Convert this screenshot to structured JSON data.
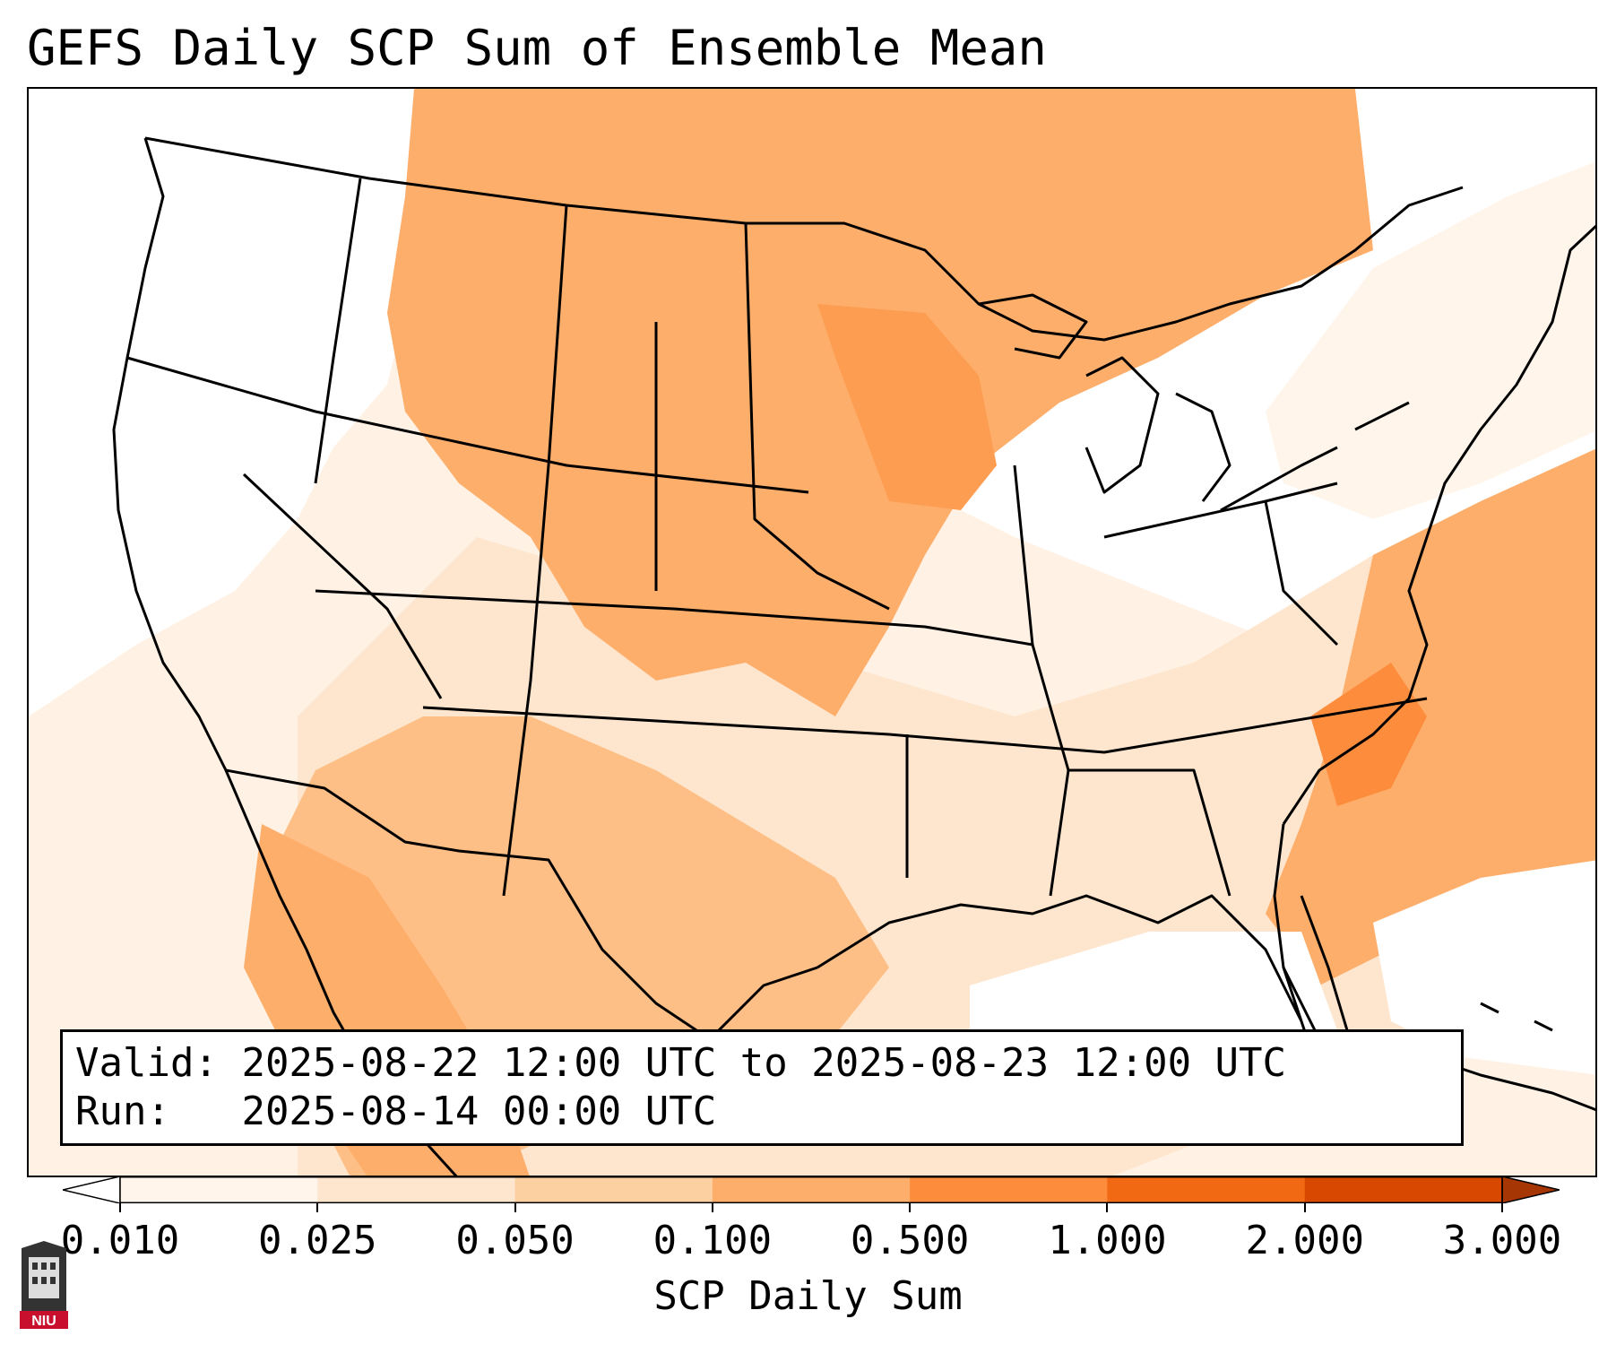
{
  "title": "GEFS Daily SCP Sum of Ensemble Mean",
  "info": {
    "valid_label": "Valid:",
    "valid_value": "2025-08-22 12:00 UTC to 2025-08-23 12:00 UTC",
    "run_label": "Run:",
    "run_value": "2025-08-14 00:00 UTC"
  },
  "colorbar": {
    "label": "SCP Daily Sum",
    "ticks": [
      "0.010",
      "0.025",
      "0.050",
      "0.100",
      "0.500",
      "1.000",
      "2.000",
      "3.000"
    ],
    "colors": [
      "#fff5eb",
      "#fee6ce",
      "#fdd0a2",
      "#fdae6b",
      "#fd8d3c",
      "#f16913",
      "#d94801"
    ],
    "under_color": "#ffffff",
    "over_color": "#a63603",
    "extend": "both"
  },
  "logo": {
    "text": "NIU",
    "color": "#c8102e"
  }
}
